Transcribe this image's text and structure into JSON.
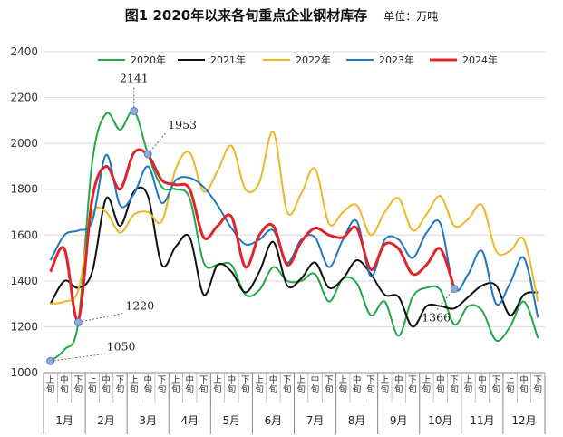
{
  "title": "图1  2020年以来各旬重点企业钢材库存",
  "unit": "单位：万吨",
  "chart_data": {
    "type": "line",
    "title": "图1  2020年以来各旬重点企业钢材库存",
    "ylim": [
      1000,
      2400
    ],
    "yticks": [
      1000,
      1200,
      1400,
      1600,
      1800,
      2000,
      2200,
      2400
    ],
    "grid": "horizontal",
    "legend_position": "top",
    "months": [
      "1月",
      "2月",
      "3月",
      "4月",
      "5月",
      "6月",
      "7月",
      "8月",
      "9月",
      "10月",
      "11月",
      "12月"
    ],
    "xticks_per_month": [
      "上旬",
      "中旬",
      "下旬"
    ],
    "series": [
      {
        "name": "2020年",
        "color": "#22a84a",
        "values": [
          1050,
          1100,
          1220,
          1920,
          2130,
          2060,
          2141,
          1953,
          1810,
          1800,
          1760,
          1480,
          1470,
          1470,
          1340,
          1360,
          1460,
          1400,
          1400,
          1430,
          1310,
          1410,
          1390,
          1250,
          1310,
          1160,
          1330,
          1370,
          1360,
          1210,
          1290,
          1270,
          1140,
          1200,
          1310,
          1150
        ]
      },
      {
        "name": "2021年",
        "color": "#111111",
        "values": [
          1300,
          1400,
          1370,
          1440,
          1760,
          1640,
          1790,
          1770,
          1470,
          1550,
          1590,
          1340,
          1470,
          1440,
          1350,
          1440,
          1570,
          1380,
          1410,
          1480,
          1370,
          1410,
          1490,
          1430,
          1340,
          1330,
          1200,
          1290,
          1290,
          1280,
          1330,
          1380,
          1380,
          1250,
          1340,
          1350
        ]
      },
      {
        "name": "2022年",
        "color": "#efb726",
        "values": [
          1300,
          1310,
          1360,
          1690,
          1700,
          1610,
          1690,
          1700,
          1660,
          1890,
          1960,
          1790,
          1880,
          1990,
          1800,
          1830,
          2050,
          1700,
          1780,
          1890,
          1650,
          1700,
          1730,
          1600,
          1700,
          1760,
          1620,
          1690,
          1770,
          1640,
          1670,
          1730,
          1530,
          1530,
          1580,
          1310
        ]
      },
      {
        "name": "2023年",
        "color": "#1f78c0",
        "values": [
          1490,
          1600,
          1620,
          1660,
          1950,
          1730,
          1780,
          1900,
          1740,
          1840,
          1850,
          1810,
          1730,
          1630,
          1560,
          1580,
          1620,
          1480,
          1580,
          1590,
          1460,
          1580,
          1660,
          1420,
          1580,
          1580,
          1500,
          1610,
          1650,
          1366,
          1430,
          1530,
          1300,
          1390,
          1500,
          1240
        ]
      },
      {
        "name": "2024年",
        "color": "#e0242a",
        "values": [
          1440,
          1540,
          1230,
          1760,
          1900,
          1800,
          1960,
          1950,
          1840,
          1820,
          1800,
          1590,
          1640,
          1680,
          1460,
          1600,
          1640,
          1470,
          1570,
          1630,
          1600,
          1590,
          1630,
          1450,
          1560,
          1540,
          1430,
          1470,
          1540,
          1366
        ]
      }
    ],
    "annotations": [
      {
        "series": "2020年",
        "index": 0,
        "label": "1050"
      },
      {
        "series": "2020年",
        "index": 2,
        "label": "1220"
      },
      {
        "series": "2020年",
        "index": 6,
        "label": "2141"
      },
      {
        "series": "2020年",
        "index": 7,
        "label": "1953"
      },
      {
        "series": "2023年",
        "index": 29,
        "label": "1366"
      }
    ]
  }
}
